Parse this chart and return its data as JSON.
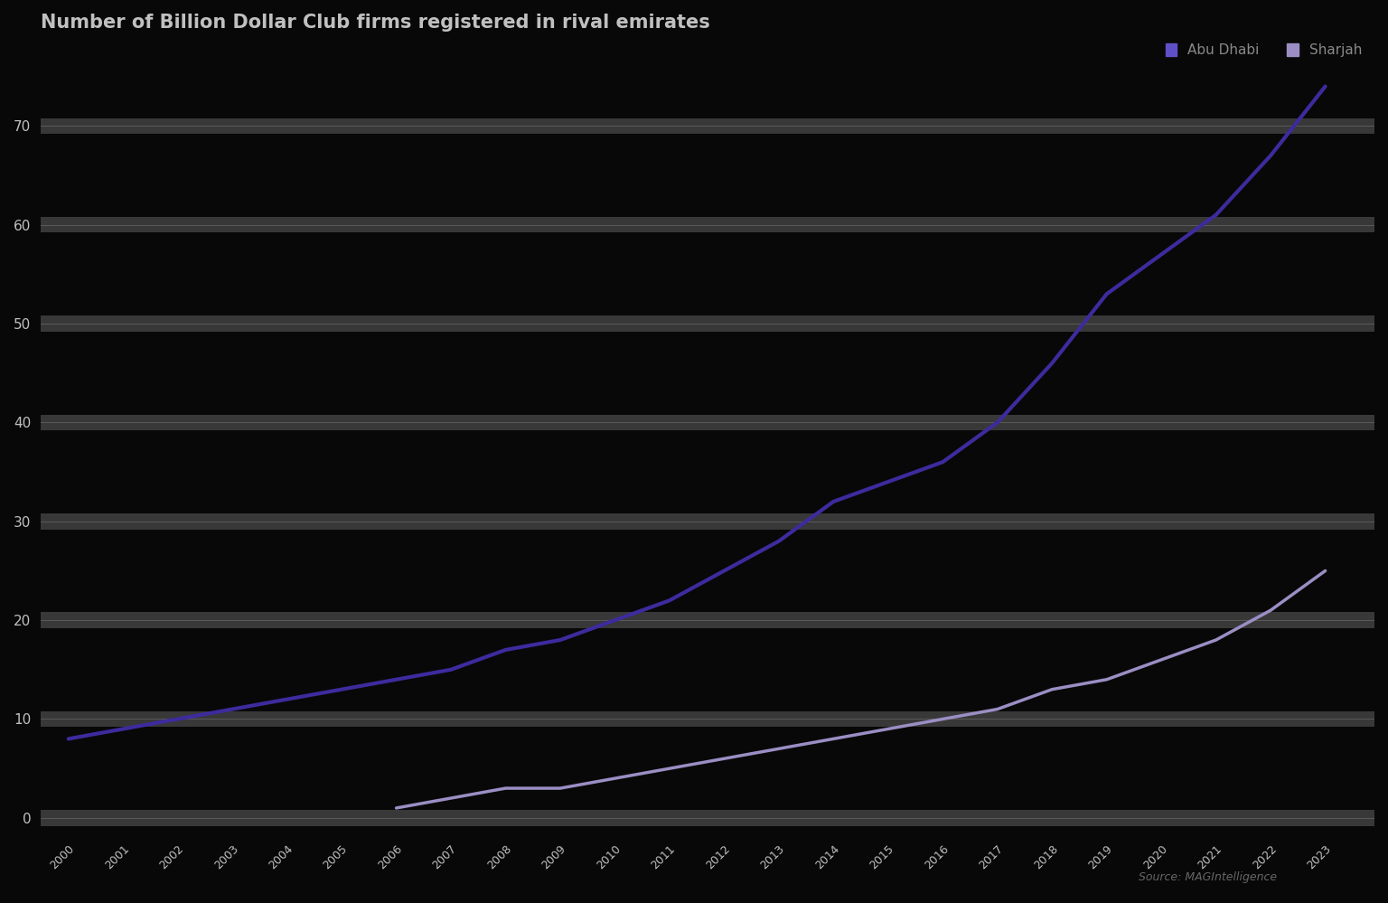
{
  "title": "Number of Billion Dollar Club firms registered in rival emirates",
  "background_color": "#080808",
  "plot_bg_color": "#080808",
  "band_color": "#c8c8c8",
  "band_alpha": 0.18,
  "text_color": "#c0c0c0",
  "label_bg_color": "#2a2a2a",
  "series": [
    {
      "label": "Abu Dhabi",
      "color": "#3d2b9e",
      "linewidth": 3.0,
      "x": [
        2000,
        2001,
        2002,
        2003,
        2004,
        2005,
        2006,
        2007,
        2008,
        2009,
        2010,
        2011,
        2012,
        2013,
        2014,
        2015,
        2016,
        2017,
        2018,
        2019,
        2020,
        2021,
        2022,
        2023
      ],
      "y": [
        8,
        9,
        10,
        11,
        12,
        13,
        14,
        15,
        17,
        18,
        20,
        22,
        25,
        28,
        32,
        34,
        36,
        40,
        46,
        53,
        57,
        61,
        67,
        74
      ]
    },
    {
      "label": "Sharjah",
      "color": "#9b8ec4",
      "linewidth": 2.5,
      "x": [
        2006,
        2007,
        2008,
        2009,
        2010,
        2011,
        2012,
        2013,
        2014,
        2015,
        2016,
        2017,
        2018,
        2019,
        2020,
        2021,
        2022,
        2023
      ],
      "y": [
        1,
        2,
        3,
        3,
        4,
        5,
        6,
        7,
        8,
        9,
        10,
        11,
        13,
        14,
        16,
        18,
        21,
        25
      ]
    }
  ],
  "yticks": [
    0,
    10,
    20,
    30,
    40,
    50,
    60,
    70
  ],
  "ylim": [
    -2,
    78
  ],
  "xlim": [
    1999.5,
    2023.9
  ],
  "source_text": "Source: MAGIntelligence",
  "legend_labels": [
    "Abu Dhabi",
    "Sharjah"
  ],
  "legend_colors": [
    "#6050c8",
    "#9b8ec4"
  ],
  "title_fontsize": 15,
  "tick_fontsize": 11
}
